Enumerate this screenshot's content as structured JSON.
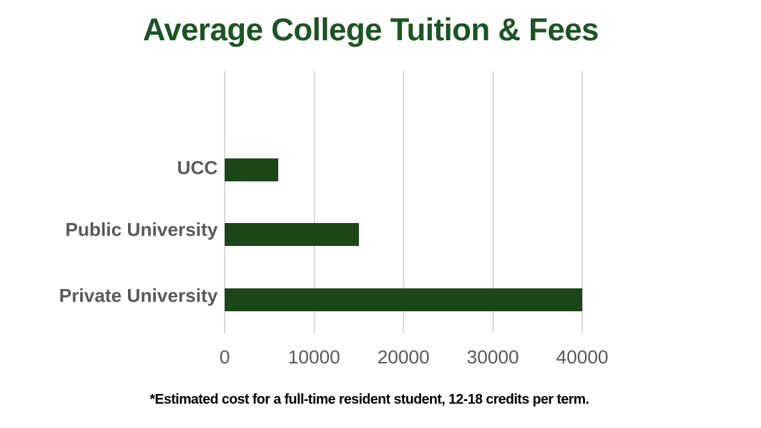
{
  "title": "Average College Tuition & Fees",
  "footnote": "*Estimated cost for a full-time resident student, 12-18 credits per term.",
  "colors": {
    "title": "#1d5424",
    "bar": "#1d4618",
    "label": "#595959",
    "gridline": "#d9d9d9",
    "footnote": "#000000",
    "background": "#ffffff"
  },
  "chart_data": {
    "type": "bar",
    "orientation": "horizontal",
    "title": "Average College Tuition & Fees",
    "categories": [
      "UCC",
      "Public University",
      "Private University"
    ],
    "values": [
      6000,
      15000,
      40000
    ],
    "xlabel": "",
    "ylabel": "",
    "xlim": [
      0,
      40000
    ],
    "xticks": [
      0,
      10000,
      20000,
      30000,
      40000
    ],
    "grid": "vertical-only",
    "legend": "none",
    "annotations": [
      "*Estimated cost for a full-time resident student, 12-18 credits per term."
    ]
  }
}
